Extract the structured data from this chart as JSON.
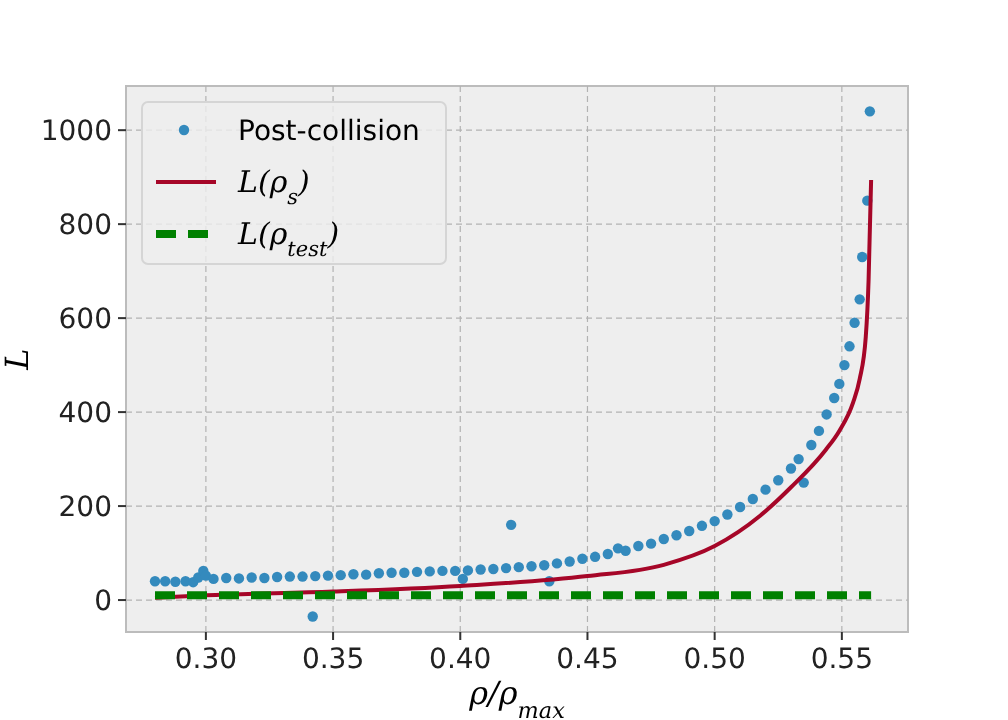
{
  "chart_data": {
    "type": "scatter",
    "xlabel": "ρ/ρ$_{max}$",
    "ylabel": "L",
    "xlim": [
      0.2686,
      0.576
    ],
    "ylim": [
      -68,
      1094
    ],
    "xticks": [
      {
        "value": 0.3,
        "label": "0.30"
      },
      {
        "value": 0.35,
        "label": "0.35"
      },
      {
        "value": 0.4,
        "label": "0.40"
      },
      {
        "value": 0.45,
        "label": "0.45"
      },
      {
        "value": 0.5,
        "label": "0.50"
      },
      {
        "value": 0.55,
        "label": "0.55"
      }
    ],
    "yticks": [
      0,
      200,
      400,
      600,
      800,
      1000
    ],
    "grid": true,
    "legend": "top left",
    "series": [
      {
        "name": "Post-collision",
        "color": "#348abd",
        "marker": "circle",
        "x": [
          0.28,
          0.284,
          0.288,
          0.292,
          0.295,
          0.297,
          0.299,
          0.3,
          0.303,
          0.308,
          0.313,
          0.318,
          0.323,
          0.328,
          0.333,
          0.338,
          0.342,
          0.343,
          0.348,
          0.353,
          0.358,
          0.363,
          0.368,
          0.373,
          0.378,
          0.383,
          0.388,
          0.393,
          0.398,
          0.401,
          0.403,
          0.408,
          0.413,
          0.418,
          0.42,
          0.423,
          0.428,
          0.433,
          0.435,
          0.438,
          0.443,
          0.448,
          0.453,
          0.458,
          0.462,
          0.465,
          0.47,
          0.475,
          0.48,
          0.485,
          0.49,
          0.495,
          0.5,
          0.505,
          0.51,
          0.515,
          0.52,
          0.525,
          0.53,
          0.533,
          0.535,
          0.538,
          0.541,
          0.544,
          0.547,
          0.549,
          0.551,
          0.553,
          0.555,
          0.557,
          0.558,
          0.56,
          0.561
        ],
        "values": [
          40,
          40,
          39,
          40,
          38,
          48,
          62,
          52,
          45,
          47,
          46,
          48,
          47,
          49,
          50,
          50,
          -35,
          51,
          52,
          53,
          55,
          54,
          57,
          58,
          58,
          60,
          61,
          62,
          62,
          45,
          63,
          65,
          66,
          68,
          160,
          70,
          72,
          74,
          40,
          78,
          82,
          88,
          92,
          98,
          110,
          105,
          115,
          120,
          130,
          138,
          147,
          158,
          168,
          182,
          198,
          215,
          235,
          255,
          280,
          300,
          250,
          330,
          360,
          395,
          430,
          460,
          500,
          540,
          590,
          640,
          730,
          850,
          1040
        ]
      },
      {
        "name": "L(ρ$_{s}$)",
        "type": "line",
        "color": "#a60628",
        "marker": "none",
        "line_style": "solid",
        "x": [
          0.28,
          0.3,
          0.35,
          0.4,
          0.45,
          0.48,
          0.5,
          0.518,
          0.53,
          0.5437,
          0.549,
          0.5544,
          0.557,
          0.5594,
          0.5605,
          0.5615
        ],
        "values": [
          5,
          10,
          18,
          30,
          51,
          75,
          115,
          180,
          240,
          320,
          360,
          420,
          470,
          560,
          680,
          894
        ]
      },
      {
        "name": "L(ρ$_{test}$)",
        "type": "line",
        "color": "#008000",
        "marker": "none",
        "line_style": "dashed",
        "x": [
          0.28,
          0.5615
        ],
        "values": [
          10,
          10
        ]
      }
    ]
  }
}
